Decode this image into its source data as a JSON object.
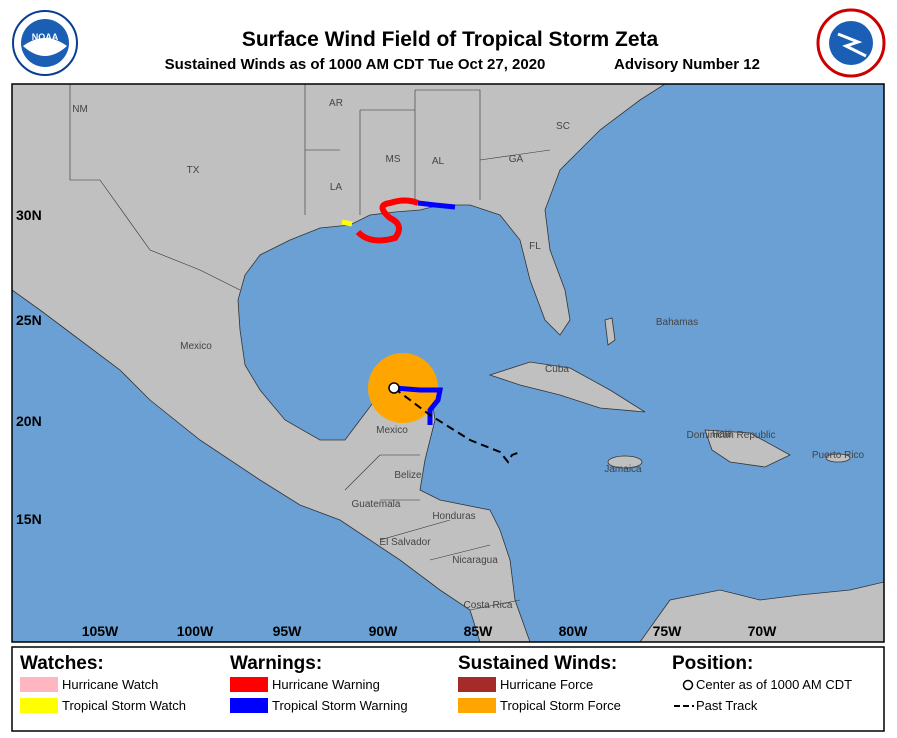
{
  "header": {
    "title": "Surface Wind Field of Tropical Storm Zeta",
    "subtitle": "Sustained Winds as of 1000 AM CDT Tue Oct 27, 2020",
    "advisory": "Advisory Number 12"
  },
  "map": {
    "region_labels": [
      "NM",
      "AR",
      "SC",
      "MS",
      "AL",
      "GA",
      "TX",
      "LA",
      "FL",
      "Bahamas",
      "Mexico",
      "Cuba",
      "Mexico",
      "Belize",
      "Haiti",
      "Dominican Republic",
      "Puerto Rico",
      "Jamaica",
      "Guatemala",
      "Honduras",
      "El Salvador",
      "Nicaragua",
      "Costa Rica"
    ],
    "lat_labels": [
      "30N",
      "25N",
      "20N",
      "15N"
    ],
    "lon_labels": [
      "105W",
      "100W",
      "95W",
      "90W",
      "85W",
      "80W",
      "75W",
      "70W"
    ]
  },
  "legend": {
    "watches": {
      "title": "Watches:",
      "items": [
        "Hurricane Watch",
        "Tropical Storm Watch"
      ]
    },
    "warnings": {
      "title": "Warnings:",
      "items": [
        "Hurricane Warning",
        "Tropical Storm Warning"
      ]
    },
    "winds": {
      "title": "Sustained Winds:",
      "items": [
        "Hurricane Force",
        "Tropical Storm Force"
      ]
    },
    "position": {
      "title": "Position:",
      "items": [
        "Center as of 1000 AM CDT",
        "Past Track"
      ]
    }
  }
}
